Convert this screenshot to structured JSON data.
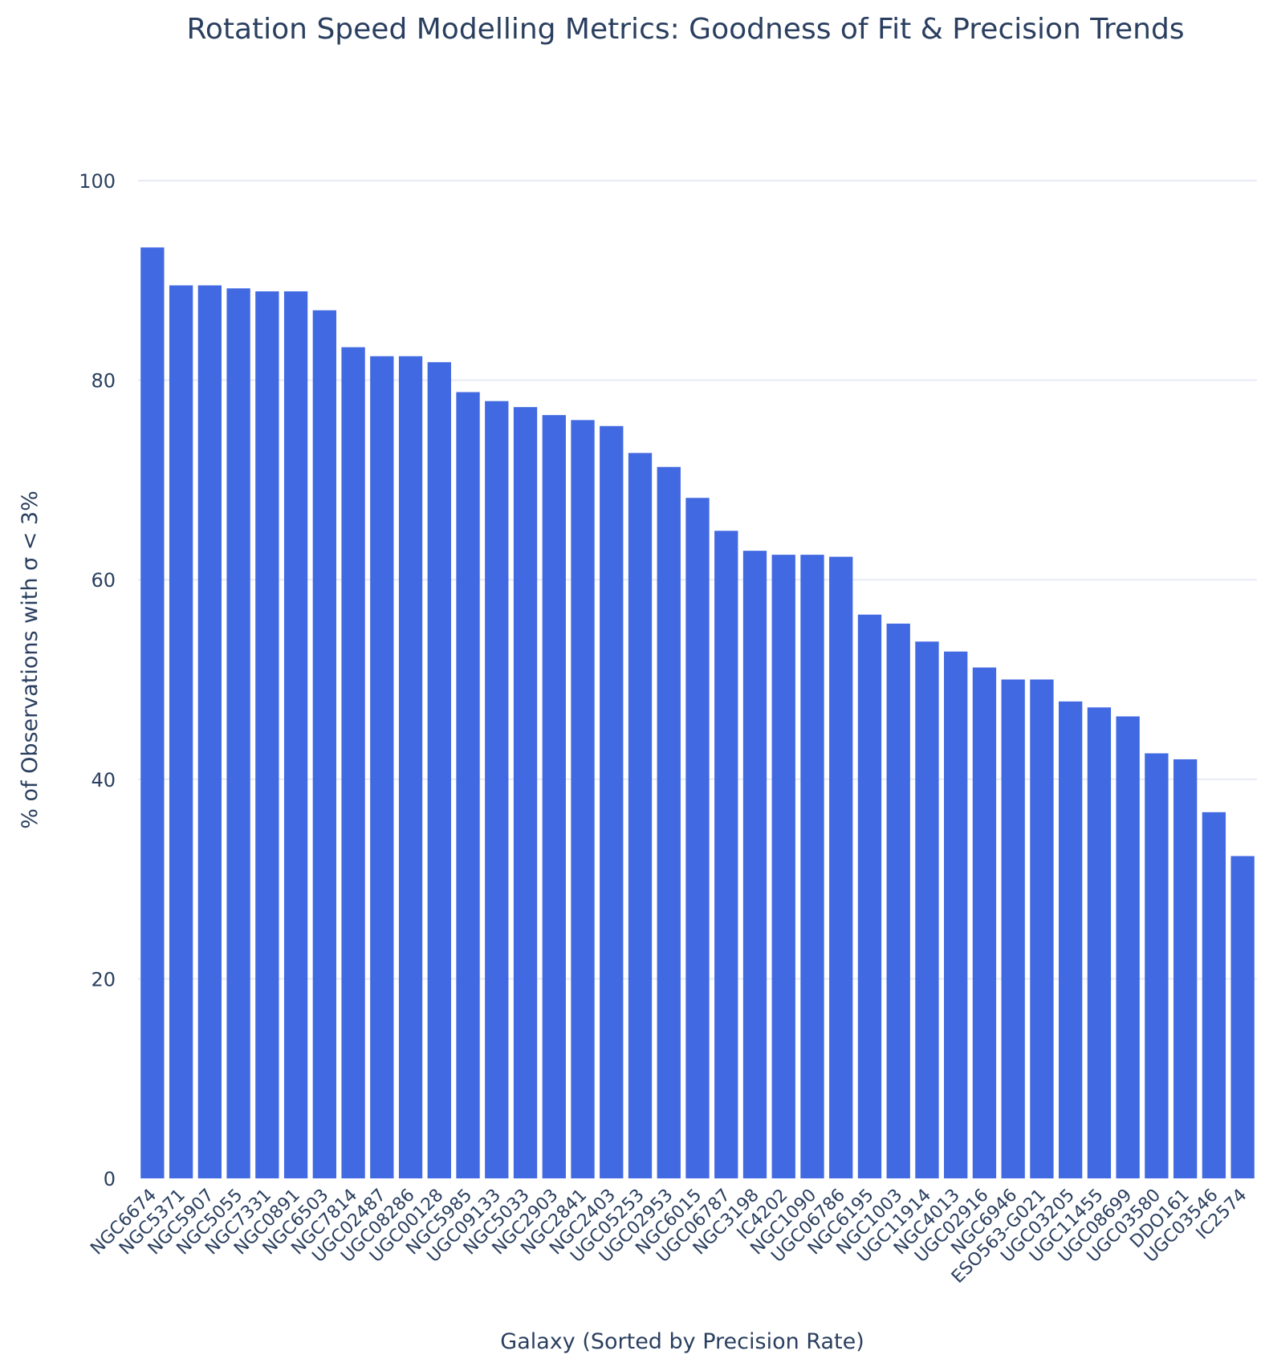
{
  "chart_data": {
    "type": "bar",
    "title": "Rotation Speed Modelling Metrics: Goodness of Fit & Precision Trends",
    "xlabel": "Galaxy (Sorted by Precision Rate)",
    "ylabel": "% of Observations with σ < 3%",
    "ylim": [
      0,
      100
    ],
    "yticks": [
      0,
      20,
      40,
      60,
      80,
      100
    ],
    "grid": true,
    "bar_color": "#4169e1",
    "grid_color": "#e8eaf6",
    "text_color": "#2a3f5f",
    "categories": [
      "NGC6674",
      "NGC5371",
      "NGC5907",
      "NGC5055",
      "NGC7331",
      "NGC0891",
      "NGC6503",
      "NGC7814",
      "UGC02487",
      "UGC08286",
      "UGC00128",
      "NGC5985",
      "UGC09133",
      "NGC5033",
      "NGC2903",
      "NGC2841",
      "NGC2403",
      "UGC05253",
      "UGC02953",
      "NGC6015",
      "UGC06787",
      "NGC3198",
      "IC4202",
      "NGC1090",
      "UGC06786",
      "NGC6195",
      "NGC1003",
      "UGC11914",
      "NGC4013",
      "UGC02916",
      "NGC6946",
      "ESO563-G021",
      "UGC03205",
      "UGC11455",
      "UGC08699",
      "UGC03580",
      "DDO161",
      "UGC03546",
      "IC2574"
    ],
    "values": [
      93.3,
      89.5,
      89.5,
      89.2,
      88.9,
      88.9,
      87.0,
      83.3,
      82.4,
      82.4,
      81.8,
      78.8,
      77.9,
      77.3,
      76.5,
      76.0,
      75.4,
      72.7,
      71.3,
      68.2,
      64.9,
      62.9,
      62.5,
      62.5,
      62.3,
      56.5,
      55.6,
      53.8,
      52.8,
      51.2,
      50.0,
      50.0,
      47.8,
      47.2,
      46.3,
      42.6,
      42.0,
      36.7,
      32.3
    ]
  }
}
